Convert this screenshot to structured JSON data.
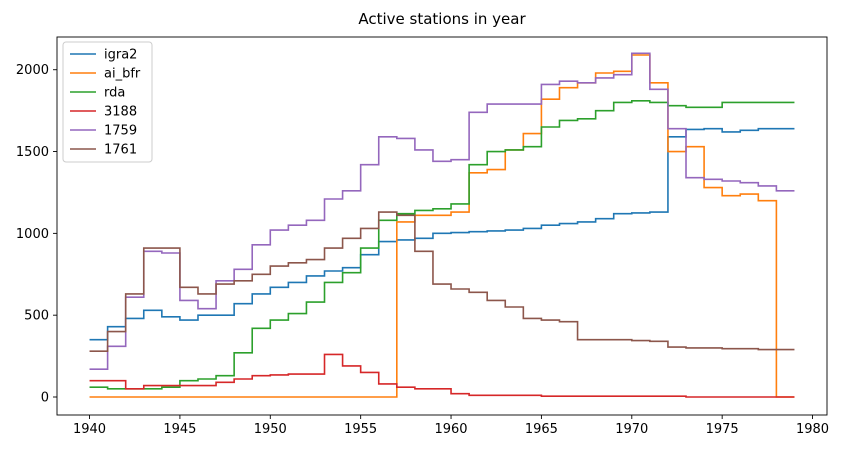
{
  "chart_data": {
    "type": "line",
    "drawstyle": "steps-post",
    "title": "Active stations in year",
    "xlabel": "",
    "ylabel": "",
    "xlim": [
      1938.2,
      1980.8
    ],
    "ylim": [
      -110,
      2200
    ],
    "xticks": [
      1940,
      1945,
      1950,
      1955,
      1960,
      1965,
      1970,
      1975,
      1980
    ],
    "yticks": [
      0,
      500,
      1000,
      1500,
      2000
    ],
    "grid": false,
    "legend_position": "top-left",
    "x": [
      1940,
      1941,
      1942,
      1943,
      1944,
      1945,
      1946,
      1947,
      1948,
      1949,
      1950,
      1951,
      1952,
      1953,
      1954,
      1955,
      1956,
      1957,
      1958,
      1959,
      1960,
      1961,
      1962,
      1963,
      1964,
      1965,
      1966,
      1967,
      1968,
      1969,
      1970,
      1971,
      1972,
      1973,
      1974,
      1975,
      1976,
      1977,
      1978,
      1979
    ],
    "series": [
      {
        "name": "igra2",
        "color": "#1f77b4",
        "values": [
          350,
          430,
          480,
          530,
          490,
          470,
          500,
          500,
          570,
          630,
          670,
          700,
          740,
          770,
          790,
          870,
          950,
          960,
          970,
          1000,
          1005,
          1010,
          1015,
          1020,
          1030,
          1050,
          1060,
          1070,
          1090,
          1120,
          1125,
          1130,
          1590,
          1635,
          1640,
          1620,
          1630,
          1640,
          1640,
          1640
        ]
      },
      {
        "name": "ai_bfr",
        "color": "#ff7f0e",
        "values": [
          0,
          0,
          0,
          0,
          0,
          0,
          0,
          0,
          0,
          0,
          0,
          0,
          0,
          0,
          0,
          0,
          0,
          1070,
          1110,
          1110,
          1130,
          1370,
          1390,
          1510,
          1610,
          1820,
          1890,
          1920,
          1980,
          1990,
          2090,
          1920,
          1500,
          1530,
          1280,
          1230,
          1240,
          1200,
          0,
          0
        ]
      },
      {
        "name": "rda",
        "color": "#2ca02c",
        "values": [
          60,
          50,
          50,
          50,
          60,
          100,
          110,
          130,
          270,
          420,
          470,
          510,
          580,
          700,
          760,
          910,
          1080,
          1120,
          1140,
          1150,
          1180,
          1420,
          1500,
          1510,
          1530,
          1650,
          1690,
          1700,
          1750,
          1800,
          1810,
          1800,
          1780,
          1770,
          1770,
          1800,
          1800,
          1800,
          1800,
          1800
        ]
      },
      {
        "name": "3188",
        "color": "#d62728",
        "values": [
          100,
          100,
          50,
          70,
          70,
          70,
          70,
          90,
          110,
          130,
          135,
          140,
          140,
          260,
          190,
          150,
          80,
          60,
          50,
          50,
          20,
          10,
          10,
          10,
          10,
          5,
          5,
          5,
          5,
          5,
          5,
          5,
          5,
          0,
          0,
          0,
          0,
          0,
          0,
          0
        ]
      },
      {
        "name": "1759",
        "color": "#9467bd",
        "values": [
          170,
          310,
          610,
          890,
          880,
          590,
          540,
          710,
          780,
          930,
          1020,
          1050,
          1080,
          1210,
          1260,
          1420,
          1590,
          1580,
          1510,
          1440,
          1450,
          1740,
          1790,
          1790,
          1790,
          1910,
          1930,
          1920,
          1950,
          1970,
          2100,
          1880,
          1640,
          1340,
          1330,
          1320,
          1310,
          1290,
          1260,
          1260
        ]
      },
      {
        "name": "1761",
        "color": "#8c564b",
        "values": [
          280,
          400,
          630,
          910,
          910,
          670,
          630,
          690,
          710,
          750,
          800,
          820,
          840,
          910,
          970,
          1030,
          1130,
          1110,
          890,
          690,
          660,
          640,
          590,
          550,
          480,
          470,
          460,
          350,
          350,
          350,
          345,
          340,
          305,
          300,
          300,
          295,
          295,
          290,
          290,
          290
        ]
      }
    ]
  }
}
